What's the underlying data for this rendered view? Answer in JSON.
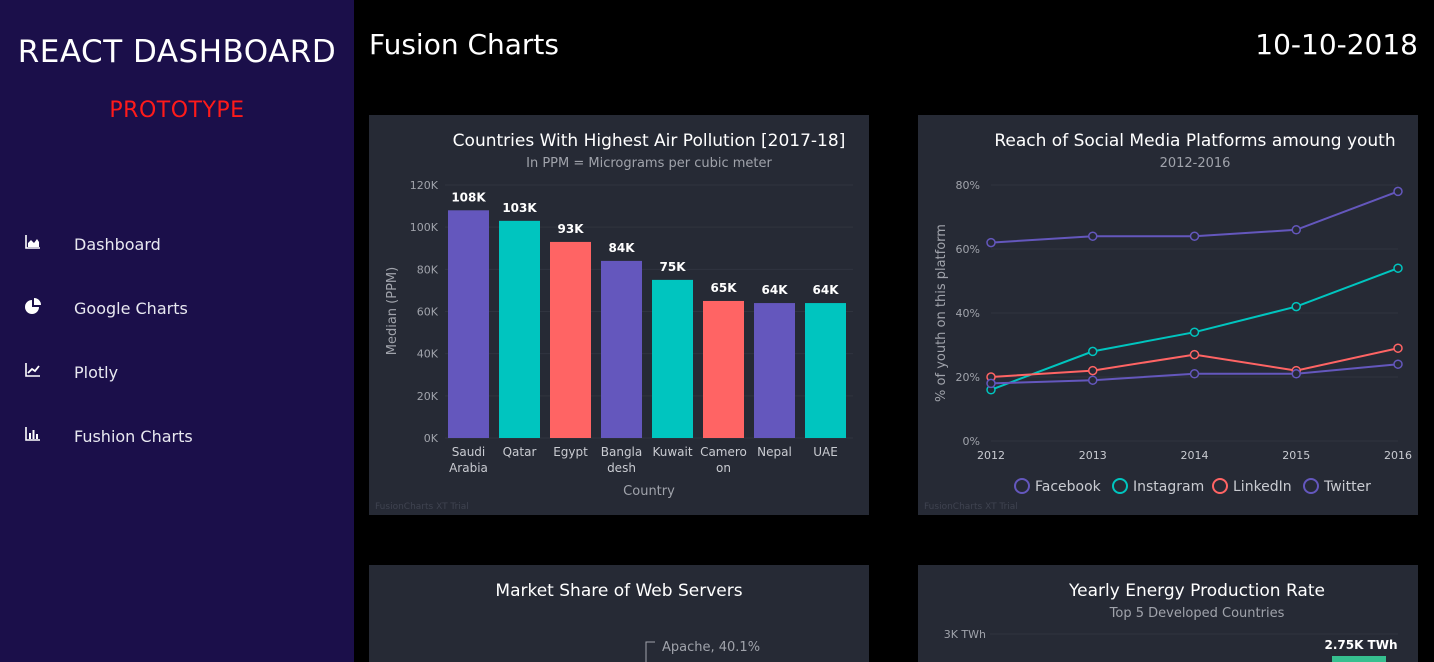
{
  "sidebar": {
    "title": "REACT DASHBOARD",
    "subtitle": "PROTOTYPE",
    "items": [
      {
        "label": "Dashboard",
        "icon": "area-chart-icon"
      },
      {
        "label": "Google Charts",
        "icon": "pie-chart-icon"
      },
      {
        "label": "Plotly",
        "icon": "line-chart-icon"
      },
      {
        "label": "Fushion Charts",
        "icon": "bar-chart-icon"
      }
    ]
  },
  "header": {
    "title": "Fusion Charts",
    "date": "10-10-2018"
  },
  "colors": {
    "sidebar": "#1b0f4a",
    "card": "#262a35",
    "purple": "#6457bd",
    "teal": "#00c5bf",
    "red": "#ff6464"
  },
  "watermark": "FusionCharts XT Trial",
  "chart_data": [
    {
      "type": "bar",
      "title": "Countries With Highest Air Pollution [2017-18]",
      "subtitle": "In PPM = Micrograms per cubic meter",
      "xlabel": "Country",
      "ylabel": "Median (PPM)",
      "ylim": [
        0,
        120000
      ],
      "yticks": [
        "0K",
        "20K",
        "40K",
        "60K",
        "80K",
        "100K",
        "120K"
      ],
      "categories": [
        [
          "Saudi",
          "Arabia"
        ],
        [
          "Qatar"
        ],
        [
          "Egypt"
        ],
        [
          "Bangla",
          "desh"
        ],
        [
          "Kuwait"
        ],
        [
          "Camero",
          "on"
        ],
        [
          "Nepal"
        ],
        [
          "UAE"
        ]
      ],
      "values": [
        108000,
        103000,
        93000,
        84000,
        75000,
        65000,
        64000,
        64000
      ],
      "value_labels": [
        "108K",
        "103K",
        "93K",
        "84K",
        "75K",
        "65K",
        "64K",
        "64K"
      ],
      "bar_colors": [
        "#6457bd",
        "#00c5bf",
        "#ff6464",
        "#6457bd",
        "#00c5bf",
        "#ff6464",
        "#6457bd",
        "#00c5bf"
      ]
    },
    {
      "type": "line",
      "title": "Reach of Social Media Platforms amoung youth",
      "subtitle": "2012-2016",
      "ylabel": "% of youth on this platform",
      "ylim": [
        0,
        80
      ],
      "yticks": [
        "0%",
        "20%",
        "40%",
        "60%",
        "80%"
      ],
      "x": [
        "2012",
        "2013",
        "2014",
        "2015",
        "2016"
      ],
      "legend": "bottom",
      "series": [
        {
          "name": "Facebook",
          "color": "#6457bd",
          "values": [
            62,
            64,
            64,
            66,
            78
          ]
        },
        {
          "name": "Instagram",
          "color": "#00c5bf",
          "values": [
            16,
            28,
            34,
            42,
            54
          ]
        },
        {
          "name": "LinkedIn",
          "color": "#ff6464",
          "values": [
            20,
            22,
            27,
            22,
            29
          ]
        },
        {
          "name": "Twitter",
          "color": "#6457bd",
          "values": [
            18,
            19,
            21,
            21,
            24
          ]
        }
      ]
    },
    {
      "type": "pie",
      "title": "Market Share of Web Servers",
      "slices": [
        {
          "label": "Apache, 40.1%",
          "value": 40.1
        }
      ]
    },
    {
      "type": "bar",
      "title": "Yearly Energy Production Rate",
      "subtitle": "Top 5 Developed Countries",
      "yticks": [
        "3K TWh"
      ],
      "value_labels": [
        "2.75K TWh"
      ],
      "values": [
        2750
      ]
    }
  ]
}
